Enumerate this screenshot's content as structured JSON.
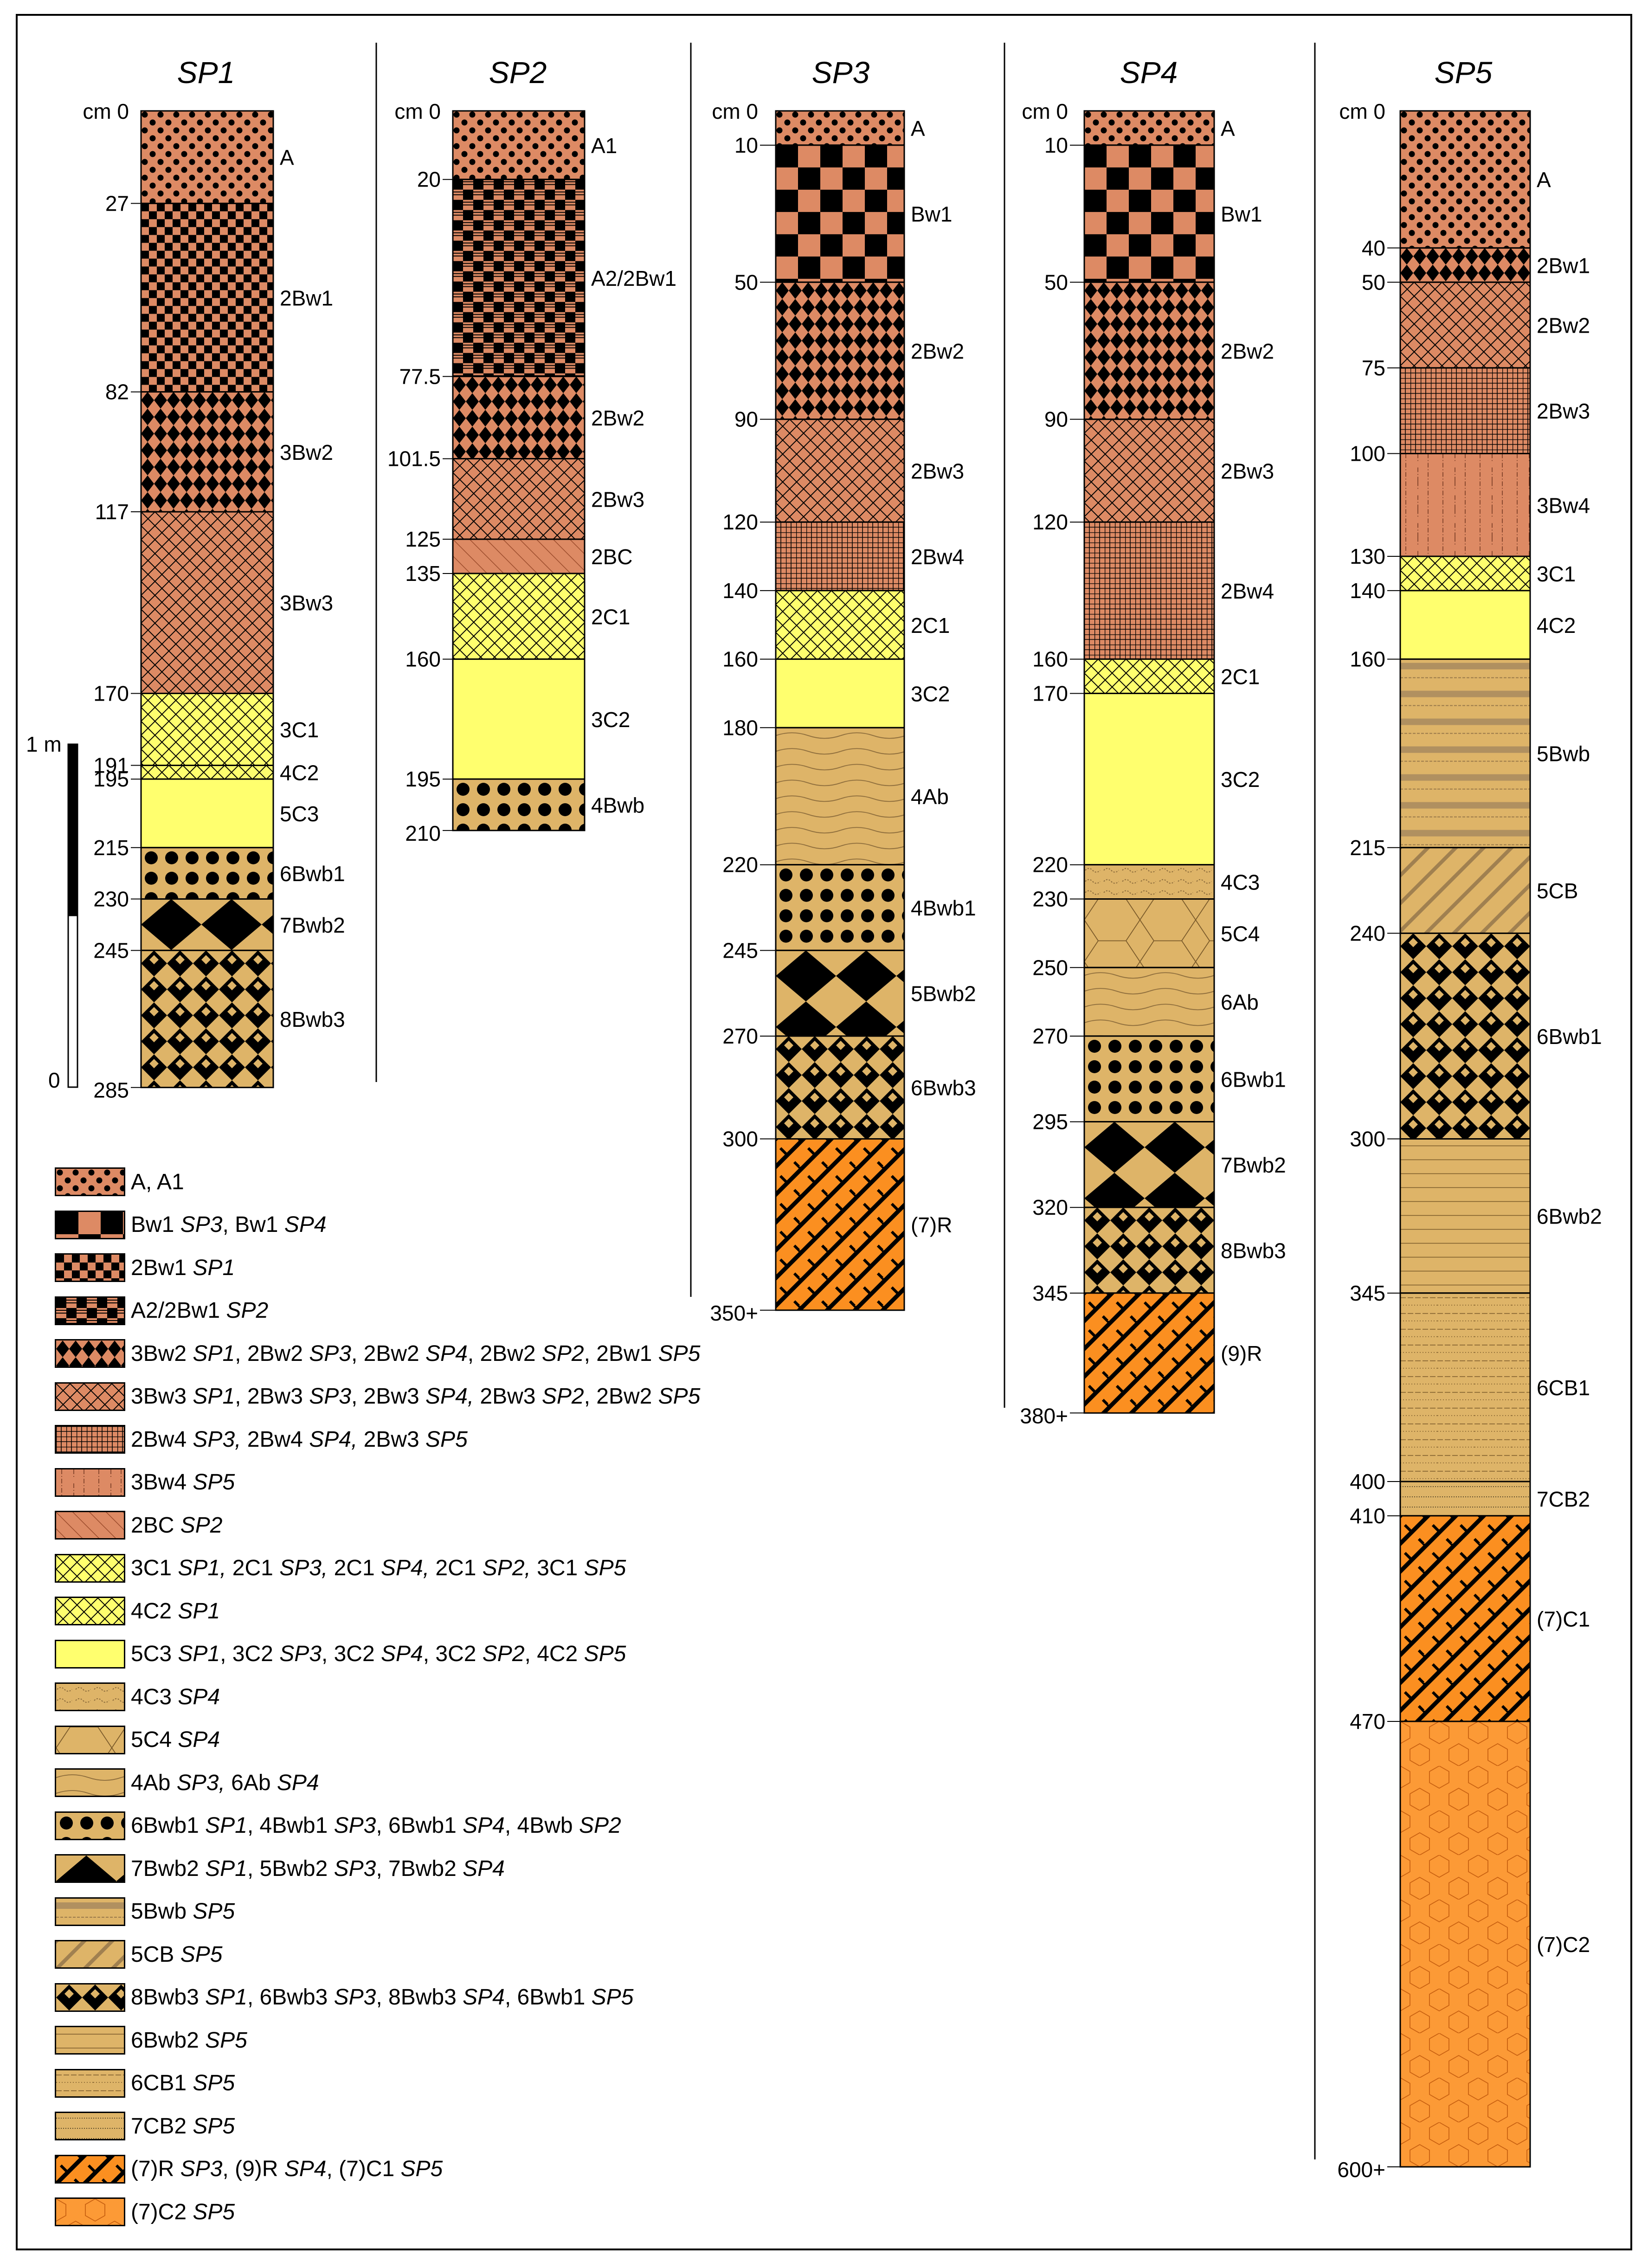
{
  "profiles": [
    {
      "name": "SP1",
      "top_label": "cm 0",
      "max": 285,
      "end_label": "285",
      "horizons": [
        {
          "from": 0,
          "to": 27,
          "name": "A",
          "pattern": "dots-fine"
        },
        {
          "from": 27,
          "to": 82,
          "name": "2Bw1",
          "pattern": "checker-fine"
        },
        {
          "from": 82,
          "to": 117,
          "name": "3Bw2",
          "pattern": "diamond-orange"
        },
        {
          "from": 117,
          "to": 170,
          "name": "3Bw3",
          "pattern": "crosshatch-orange"
        },
        {
          "from": 170,
          "to": 191,
          "name": "3C1",
          "pattern": "crosshatch-yellow"
        },
        {
          "from": 191,
          "to": 195,
          "name": "4C2",
          "pattern": "crosshatch-yellow"
        },
        {
          "from": 195,
          "to": 215,
          "name": "5C3",
          "pattern": "yellow"
        },
        {
          "from": 215,
          "to": 230,
          "name": "6Bwb1",
          "pattern": "dots-big"
        },
        {
          "from": 230,
          "to": 245,
          "name": "7Bwb2",
          "pattern": "diamond-big"
        },
        {
          "from": 245,
          "to": 285,
          "name": "8Bwb3",
          "pattern": "diamond-small"
        }
      ],
      "depth_labels": [
        "27",
        "82",
        "117",
        "170",
        "191",
        "195",
        "215",
        "230",
        "245"
      ]
    },
    {
      "name": "SP2",
      "top_label": "cm 0",
      "max": 210,
      "end_label": "210",
      "horizons": [
        {
          "from": 0,
          "to": 20,
          "name": "A1",
          "pattern": "dots-fine"
        },
        {
          "from": 20,
          "to": 77.5,
          "name": "A2/2Bw1",
          "pattern": "checker-striped"
        },
        {
          "from": 77.5,
          "to": 101.5,
          "name": "2Bw2",
          "pattern": "diamond-orange"
        },
        {
          "from": 101.5,
          "to": 125,
          "name": "2Bw3",
          "pattern": "crosshatch-orange"
        },
        {
          "from": 125,
          "to": 135,
          "name": "2BC",
          "pattern": "diag-orange"
        },
        {
          "from": 135,
          "to": 160,
          "name": "2C1",
          "pattern": "crosshatch-yellow"
        },
        {
          "from": 160,
          "to": 195,
          "name": "3C2",
          "pattern": "yellow"
        },
        {
          "from": 195,
          "to": 210,
          "name": "4Bwb",
          "pattern": "dots-big"
        }
      ],
      "depth_labels": [
        "20",
        "77.5",
        "101.5",
        "125",
        "135",
        "160",
        "195"
      ]
    },
    {
      "name": "SP3",
      "top_label": "cm 0",
      "max": 350,
      "end_label": "350+",
      "horizons": [
        {
          "from": 0,
          "to": 10,
          "name": "A",
          "pattern": "dots-fine"
        },
        {
          "from": 10,
          "to": 50,
          "name": "Bw1",
          "pattern": "checker-big"
        },
        {
          "from": 50,
          "to": 90,
          "name": "2Bw2",
          "pattern": "diamond-orange"
        },
        {
          "from": 90,
          "to": 120,
          "name": "2Bw3",
          "pattern": "crosshatch-orange"
        },
        {
          "from": 120,
          "to": 140,
          "name": "2Bw4",
          "pattern": "grid-orange"
        },
        {
          "from": 140,
          "to": 160,
          "name": "2C1",
          "pattern": "crosshatch-yellow"
        },
        {
          "from": 160,
          "to": 180,
          "name": "3C2",
          "pattern": "yellow"
        },
        {
          "from": 180,
          "to": 220,
          "name": "4Ab",
          "pattern": "wavy-tan"
        },
        {
          "from": 220,
          "to": 245,
          "name": "4Bwb1",
          "pattern": "dots-big"
        },
        {
          "from": 245,
          "to": 270,
          "name": "5Bwb2",
          "pattern": "diamond-big"
        },
        {
          "from": 270,
          "to": 300,
          "name": "6Bwb3",
          "pattern": "diamond-small"
        },
        {
          "from": 300,
          "to": 350,
          "name": "(7)R",
          "pattern": "brick-orange"
        }
      ],
      "depth_labels": [
        "10",
        "50",
        "90",
        "120",
        "140",
        "160",
        "180",
        "220",
        "245",
        "270",
        "300"
      ]
    },
    {
      "name": "SP4",
      "top_label": "cm 0",
      "max": 380,
      "end_label": "380+",
      "horizons": [
        {
          "from": 0,
          "to": 10,
          "name": "A",
          "pattern": "dots-fine"
        },
        {
          "from": 10,
          "to": 50,
          "name": "Bw1",
          "pattern": "checker-big"
        },
        {
          "from": 50,
          "to": 90,
          "name": "2Bw2",
          "pattern": "diamond-orange"
        },
        {
          "from": 90,
          "to": 120,
          "name": "2Bw3",
          "pattern": "crosshatch-orange"
        },
        {
          "from": 120,
          "to": 160,
          "name": "2Bw4",
          "pattern": "grid-orange"
        },
        {
          "from": 160,
          "to": 170,
          "name": "2C1",
          "pattern": "crosshatch-yellow"
        },
        {
          "from": 170,
          "to": 220,
          "name": "3C2",
          "pattern": "yellow"
        },
        {
          "from": 220,
          "to": 230,
          "name": "4C3",
          "pattern": "speckle-tan"
        },
        {
          "from": 230,
          "to": 250,
          "name": "5C4",
          "pattern": "hex-tan"
        },
        {
          "from": 250,
          "to": 270,
          "name": "6Ab",
          "pattern": "wavy-tan"
        },
        {
          "from": 270,
          "to": 295,
          "name": "6Bwb1",
          "pattern": "dots-big"
        },
        {
          "from": 295,
          "to": 320,
          "name": "7Bwb2",
          "pattern": "diamond-big"
        },
        {
          "from": 320,
          "to": 345,
          "name": "8Bwb3",
          "pattern": "diamond-small"
        },
        {
          "from": 345,
          "to": 380,
          "name": "(9)R",
          "pattern": "brick-orange"
        }
      ],
      "depth_labels": [
        "10",
        "50",
        "90",
        "120",
        "160",
        "170",
        "220",
        "230",
        "250",
        "270",
        "295",
        "320",
        "345"
      ]
    },
    {
      "name": "SP5",
      "top_label": "cm 0",
      "max": 600,
      "end_label": "600+",
      "horizons": [
        {
          "from": 0,
          "to": 40,
          "name": "A",
          "pattern": "dots-fine"
        },
        {
          "from": 40,
          "to": 50,
          "name": "2Bw1",
          "pattern": "diamond-orange"
        },
        {
          "from": 50,
          "to": 75,
          "name": "2Bw2",
          "pattern": "crosshatch-orange"
        },
        {
          "from": 75,
          "to": 100,
          "name": "2Bw3",
          "pattern": "grid-orange"
        },
        {
          "from": 100,
          "to": 130,
          "name": "3Bw4",
          "pattern": "vlines-orange"
        },
        {
          "from": 130,
          "to": 140,
          "name": "3C1",
          "pattern": "crosshatch-yellow"
        },
        {
          "from": 140,
          "to": 160,
          "name": "4C2",
          "pattern": "yellow"
        },
        {
          "from": 160,
          "to": 215,
          "name": "5Bwb",
          "pattern": "bands-tan"
        },
        {
          "from": 215,
          "to": 240,
          "name": "5CB",
          "pattern": "diag-tan"
        },
        {
          "from": 240,
          "to": 300,
          "name": "6Bwb1",
          "pattern": "diamond-small"
        },
        {
          "from": 300,
          "to": 345,
          "name": "6Bwb2",
          "pattern": "hlines-tan"
        },
        {
          "from": 345,
          "to": 400,
          "name": "6CB1",
          "pattern": "dashlines-tan"
        },
        {
          "from": 400,
          "to": 410,
          "name": "7CB2",
          "pattern": "dotlines-tan"
        },
        {
          "from": 410,
          "to": 470,
          "name": "(7)C1",
          "pattern": "brick-orange"
        },
        {
          "from": 470,
          "to": 600,
          "name": "(7)C2",
          "pattern": "hex-orange"
        }
      ],
      "depth_labels": [
        "40",
        "50",
        "75",
        "100",
        "130",
        "140",
        "160",
        "215",
        "240",
        "300",
        "345",
        "400",
        "410",
        "470"
      ]
    }
  ],
  "scale_bar": {
    "label": "1 m",
    "zero": "0"
  },
  "legend": [
    {
      "pattern": "dots-fine",
      "parts": [
        [
          "A, A1",
          ""
        ]
      ]
    },
    {
      "pattern": "checker-big",
      "parts": [
        [
          "Bw1 ",
          ""
        ],
        [
          "SP3",
          "i"
        ],
        [
          ", Bw1 ",
          ""
        ],
        [
          "SP4",
          "i"
        ]
      ]
    },
    {
      "pattern": "checker-fine",
      "parts": [
        [
          "2Bw1 ",
          ""
        ],
        [
          "SP1",
          "i"
        ]
      ]
    },
    {
      "pattern": "checker-striped",
      "parts": [
        [
          "A2/2Bw1 ",
          ""
        ],
        [
          "SP2",
          "i"
        ]
      ]
    },
    {
      "pattern": "diamond-orange",
      "parts": [
        [
          "3Bw2 ",
          ""
        ],
        [
          "SP1",
          "i"
        ],
        [
          ", 2Bw2 ",
          ""
        ],
        [
          "SP3",
          "i"
        ],
        [
          ", 2Bw2 ",
          ""
        ],
        [
          "SP4",
          "i"
        ],
        [
          ", 2Bw2 ",
          ""
        ],
        [
          "SP2",
          "i"
        ],
        [
          ", 2Bw1 ",
          ""
        ],
        [
          "SP5",
          "i"
        ]
      ]
    },
    {
      "pattern": "crosshatch-orange",
      "parts": [
        [
          "3Bw3 ",
          ""
        ],
        [
          "SP1",
          "i"
        ],
        [
          ", 2Bw3 ",
          ""
        ],
        [
          "SP3",
          "i"
        ],
        [
          ", 2Bw3 ",
          ""
        ],
        [
          "SP4,",
          "i"
        ],
        [
          " 2Bw3 ",
          ""
        ],
        [
          "SP2",
          "i"
        ],
        [
          ", 2Bw2 ",
          ""
        ],
        [
          "SP5",
          "i"
        ]
      ]
    },
    {
      "pattern": "grid-orange",
      "parts": [
        [
          "2Bw4 ",
          ""
        ],
        [
          "SP3,",
          "i"
        ],
        [
          " 2Bw4 ",
          ""
        ],
        [
          "SP4,",
          "i"
        ],
        [
          " 2Bw3 ",
          ""
        ],
        [
          "SP5",
          "i"
        ]
      ]
    },
    {
      "pattern": "vlines-orange",
      "parts": [
        [
          "3Bw4 ",
          ""
        ],
        [
          "SP5",
          "i"
        ]
      ]
    },
    {
      "pattern": "diag-orange",
      "parts": [
        [
          "2BC ",
          ""
        ],
        [
          "SP2",
          "i"
        ]
      ]
    },
    {
      "pattern": "crosshatch-yellow",
      "parts": [
        [
          "3C1 ",
          ""
        ],
        [
          "SP1,",
          "i"
        ],
        [
          " 2C1 ",
          ""
        ],
        [
          "SP3,",
          "i"
        ],
        [
          " 2C1 ",
          ""
        ],
        [
          "SP4,",
          "i"
        ],
        [
          " 2C1 ",
          ""
        ],
        [
          "SP2,",
          "i"
        ],
        [
          " 3C1 ",
          ""
        ],
        [
          "SP5",
          "i"
        ]
      ]
    },
    {
      "pattern": "crosshatch-yellow",
      "parts": [
        [
          "4C2 ",
          ""
        ],
        [
          "SP1",
          "i"
        ]
      ]
    },
    {
      "pattern": "yellow",
      "parts": [
        [
          "5C3 ",
          ""
        ],
        [
          "SP1",
          "i"
        ],
        [
          ", 3C2 ",
          ""
        ],
        [
          "SP3",
          "i"
        ],
        [
          ", 3C2 ",
          ""
        ],
        [
          "SP4",
          "i"
        ],
        [
          ", 3C2 ",
          ""
        ],
        [
          "SP2",
          "i"
        ],
        [
          ", 4C2 ",
          ""
        ],
        [
          "SP5",
          "i"
        ]
      ]
    },
    {
      "pattern": "speckle-tan",
      "parts": [
        [
          "4C3 ",
          ""
        ],
        [
          "SP4",
          "i"
        ]
      ]
    },
    {
      "pattern": "hex-tan",
      "parts": [
        [
          "5C4 ",
          ""
        ],
        [
          "SP4",
          "i"
        ]
      ]
    },
    {
      "pattern": "wavy-tan",
      "parts": [
        [
          "4Ab ",
          ""
        ],
        [
          "SP3,",
          "i"
        ],
        [
          " 6Ab ",
          ""
        ],
        [
          "SP4",
          "i"
        ]
      ]
    },
    {
      "pattern": "dots-big",
      "parts": [
        [
          "6Bwb1 ",
          ""
        ],
        [
          "SP1",
          "i"
        ],
        [
          ", 4Bwb1 ",
          ""
        ],
        [
          "SP3",
          "i"
        ],
        [
          ", 6Bwb1 ",
          ""
        ],
        [
          "SP4",
          "i"
        ],
        [
          ", 4Bwb ",
          ""
        ],
        [
          "SP2",
          "i"
        ]
      ]
    },
    {
      "pattern": "diamond-big",
      "parts": [
        [
          "7Bwb2 ",
          ""
        ],
        [
          "SP1",
          "i"
        ],
        [
          ", 5Bwb2 ",
          ""
        ],
        [
          "SP3",
          "i"
        ],
        [
          ", 7Bwb2 ",
          ""
        ],
        [
          "SP4",
          "i"
        ]
      ]
    },
    {
      "pattern": "bands-tan",
      "parts": [
        [
          "5Bwb ",
          ""
        ],
        [
          "SP5",
          "i"
        ]
      ]
    },
    {
      "pattern": "diag-tan",
      "parts": [
        [
          "5CB ",
          ""
        ],
        [
          "SP5",
          "i"
        ]
      ]
    },
    {
      "pattern": "diamond-small",
      "parts": [
        [
          "8Bwb3 ",
          ""
        ],
        [
          "SP1",
          "i"
        ],
        [
          ", 6Bwb3 ",
          ""
        ],
        [
          "SP3",
          "i"
        ],
        [
          ", 8Bwb3 ",
          ""
        ],
        [
          "SP4",
          "i"
        ],
        [
          ", 6Bwb1 ",
          ""
        ],
        [
          "SP5",
          "i"
        ]
      ]
    },
    {
      "pattern": "hlines-tan",
      "parts": [
        [
          "6Bwb2 ",
          ""
        ],
        [
          "SP5",
          "i"
        ]
      ]
    },
    {
      "pattern": "dashlines-tan",
      "parts": [
        [
          "6CB1 ",
          ""
        ],
        [
          "SP5",
          "i"
        ]
      ]
    },
    {
      "pattern": "dotlines-tan",
      "parts": [
        [
          "7CB2 ",
          ""
        ],
        [
          "SP5",
          "i"
        ]
      ]
    },
    {
      "pattern": "brick-orange",
      "parts": [
        [
          "(7)R ",
          ""
        ],
        [
          "SP3",
          "i"
        ],
        [
          ", (9)R ",
          ""
        ],
        [
          "SP4",
          "i"
        ],
        [
          ", (7)C1 ",
          ""
        ],
        [
          "SP5",
          "i"
        ]
      ]
    },
    {
      "pattern": "hex-orange",
      "parts": [
        [
          "(7)C2 ",
          ""
        ],
        [
          "SP5",
          "i"
        ]
      ]
    }
  ],
  "colors": {
    "orange": "#dd8a64",
    "yellow": "#ffff6e",
    "tan": "#deb468",
    "brick": "#fb8f20",
    "hex": "#fc9a36"
  }
}
